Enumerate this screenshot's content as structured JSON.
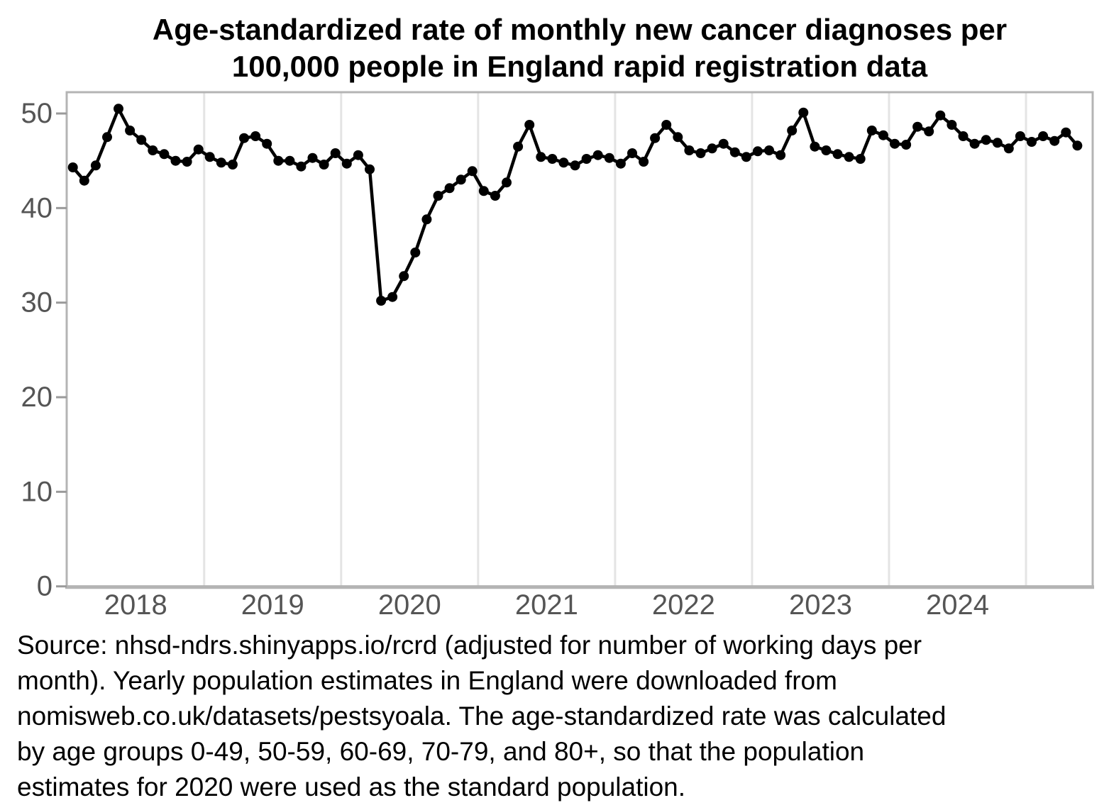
{
  "title": {
    "text": "Age-standardized rate of monthly new cancer diagnoses per\n100,000 people in England rapid registration data"
  },
  "caption": {
    "text": "Source: nhsd-ndrs.shinyapps.io/rcrd (adjusted for number of working days per\nmonth). Yearly population estimates in England were downloaded from\nnomisweb.co.uk/datasets/pestsyoala. The age-standardized rate was calculated\nby age groups 0-49, 50-59, 60-69, 70-79, and 80+, so that the population\nestimates for 2020 were used as the standard population.",
    "lines": [
      "Source: nhsd-ndrs.shinyapps.io/rcrd (adjusted for number of working days per",
      "month). Yearly population estimates in England were downloaded from",
      "nomisweb.co.uk/datasets/pestsyoala. The age-standardized rate was calculated",
      "by age groups 0-49, 50-59, 60-69, 70-79, and 80+, so that the population",
      "estimates for 2020 were used as the standard population."
    ]
  },
  "chart_data": {
    "type": "line",
    "title": "Age-standardized rate of monthly new cancer diagnoses per 100,000 people in England rapid registration data",
    "xlabel": "",
    "ylabel": "",
    "ylim": [
      0,
      52.3
    ],
    "yticks": [
      0,
      10,
      20,
      30,
      40,
      50
    ],
    "x_year_labels": [
      "2018",
      "2019",
      "2020",
      "2021",
      "2022",
      "2023",
      "2024"
    ],
    "grid": "vertical-year-gridlines-only",
    "legend": "none",
    "marker": "filled-circle",
    "x": [
      "2018-01",
      "2018-02",
      "2018-03",
      "2018-04",
      "2018-05",
      "2018-06",
      "2018-07",
      "2018-08",
      "2018-09",
      "2018-10",
      "2018-11",
      "2018-12",
      "2019-01",
      "2019-02",
      "2019-03",
      "2019-04",
      "2019-05",
      "2019-06",
      "2019-07",
      "2019-08",
      "2019-09",
      "2019-10",
      "2019-11",
      "2019-12",
      "2020-01",
      "2020-02",
      "2020-03",
      "2020-04",
      "2020-05",
      "2020-06",
      "2020-07",
      "2020-08",
      "2020-09",
      "2020-10",
      "2020-11",
      "2020-12",
      "2021-01",
      "2021-02",
      "2021-03",
      "2021-04",
      "2021-05",
      "2021-06",
      "2021-07",
      "2021-08",
      "2021-09",
      "2021-10",
      "2021-11",
      "2021-12",
      "2022-01",
      "2022-02",
      "2022-03",
      "2022-04",
      "2022-05",
      "2022-06",
      "2022-07",
      "2022-08",
      "2022-09",
      "2022-10",
      "2022-11",
      "2022-12",
      "2023-01",
      "2023-02",
      "2023-03",
      "2023-04",
      "2023-05",
      "2023-06",
      "2023-07",
      "2023-08",
      "2023-09",
      "2023-10",
      "2023-11",
      "2023-12",
      "2024-01",
      "2024-02",
      "2024-03",
      "2024-04",
      "2024-05",
      "2024-06",
      "2024-07",
      "2024-08",
      "2024-09",
      "2024-10",
      "2024-11",
      "2024-12",
      "2025-01",
      "2025-02",
      "2025-03",
      "2025-04",
      "2025-05"
    ],
    "values": [
      44.3,
      42.9,
      44.5,
      47.5,
      50.5,
      48.2,
      47.2,
      46.1,
      45.7,
      45.0,
      44.9,
      46.2,
      45.4,
      44.8,
      44.6,
      47.4,
      47.6,
      46.8,
      45.0,
      45.0,
      44.4,
      45.3,
      44.6,
      45.8,
      44.7,
      45.6,
      44.1,
      30.2,
      30.6,
      32.8,
      35.3,
      38.8,
      41.3,
      42.1,
      43.0,
      43.9,
      41.8,
      41.3,
      42.7,
      46.5,
      48.8,
      45.4,
      45.2,
      44.8,
      44.5,
      45.2,
      45.6,
      45.3,
      44.7,
      45.8,
      44.9,
      47.4,
      48.8,
      47.5,
      46.1,
      45.8,
      46.3,
      46.8,
      45.9,
      45.4,
      46.0,
      46.1,
      45.6,
      48.2,
      50.1,
      46.5,
      46.1,
      45.7,
      45.4,
      45.2,
      48.2,
      47.7,
      46.8,
      46.7,
      48.6,
      48.1,
      49.8,
      48.8,
      47.6,
      46.8,
      47.2,
      46.9,
      46.3,
      47.6,
      47.0,
      47.6,
      47.1,
      48.0,
      46.6
    ],
    "colors": {
      "line": "#000000",
      "marker": "#000000",
      "gridline": "#e4e4e4",
      "panel_border": "#b4b4b4",
      "tick_mark": "#9a9a9a",
      "axis_label": "#555555",
      "background": "#ffffff"
    }
  }
}
